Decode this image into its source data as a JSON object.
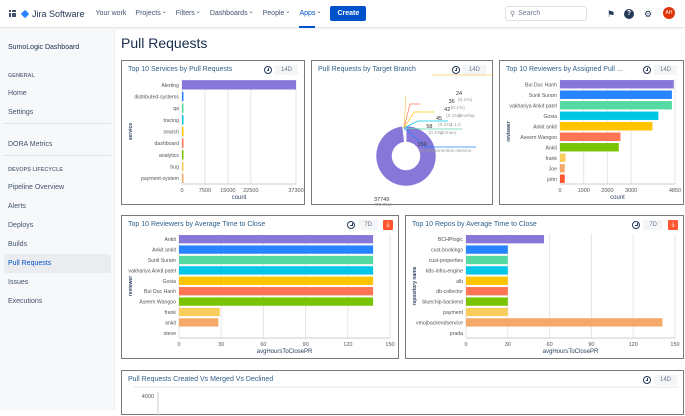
{
  "topbar": {
    "product": "Jira Software",
    "nav": [
      "Your work",
      "Projects",
      "Filters",
      "Dashboards",
      "People",
      "Apps"
    ],
    "active": "Apps",
    "create": "Create",
    "search_placeholder": "Search",
    "avatar": "AH",
    "icons": [
      "app-switcher-icon",
      "notifications-icon",
      "help-icon",
      "settings-icon"
    ]
  },
  "sidebar": {
    "dashboard": "SumoLogic Dashboard",
    "general_heading": "GENERAL",
    "general": [
      "Home",
      "Settings"
    ],
    "dora": "DORA Metrics",
    "devops_heading": "DEVOPS LIFECYCLE",
    "devops": [
      "Pipeline Overview",
      "Alerts",
      "Deploys",
      "Builds",
      "Pull Requests",
      "Issues",
      "Executions"
    ],
    "selected": "Pull Requests"
  },
  "page": {
    "title": "Pull Requests"
  },
  "colors": [
    "#8777d9",
    "#2684ff",
    "#57d9a3",
    "#00c7e6",
    "#ffc400",
    "#ff7452",
    "#79c300",
    "#f9cd5b",
    "#f5a969",
    "#ff5630"
  ],
  "chart_data": [
    {
      "type": "bar",
      "orientation": "horizontal",
      "title": "Top 10 Services by Pull Requests",
      "range": "14D",
      "ylabel": "service",
      "xlabel": "count",
      "xlim": [
        0,
        37300
      ],
      "xticks": [
        0,
        7500,
        15000,
        22500,
        37300
      ],
      "categories": [
        "Alerting",
        "distributed-systems",
        "qa",
        "tracing",
        "search",
        "dashboard",
        "analytics",
        "bug",
        "payment-system"
      ],
      "values": [
        37300,
        150,
        58,
        45,
        42,
        36,
        24,
        20,
        15
      ],
      "lead_bar": true
    },
    {
      "type": "pie",
      "style": "donut",
      "title": "Pull Requests by Target Branch",
      "range": "14D",
      "slices": [
        {
          "label": "master",
          "value": 37749,
          "pct": "99.0%"
        },
        {
          "label": "connection-service",
          "value": 150,
          "pct": "0.4%"
        },
        {
          "label": "primary",
          "value": 58,
          "pct": "0.1%"
        },
        {
          "label": "1.1.0",
          "value": 45,
          "pct": "0.1%"
        },
        {
          "label": "develop",
          "value": 42,
          "pct": "0.1%"
        },
        {
          "label": "",
          "value": 36,
          "pct": "0.1%"
        },
        {
          "label": "",
          "value": 24,
          "pct": "0.1%"
        }
      ]
    },
    {
      "type": "bar",
      "orientation": "horizontal",
      "title": "Top 10 Reviewers by Assigned Pull ...",
      "range": "14D",
      "ylabel": "reviewer",
      "xlabel": "count",
      "xlim": [
        0,
        4850
      ],
      "xticks": [
        0,
        1000,
        2000,
        3000,
        4850
      ],
      "categories": [
        "Bui Duc Hanh",
        "Sunil Suram",
        "vakhariya Ankit patel",
        "Gosia",
        "Ankit ankit",
        "Aseem Wangoo",
        "Ankit",
        "frank",
        "Joe",
        "john"
      ],
      "values": [
        4800,
        4720,
        4720,
        4150,
        3900,
        2550,
        2480,
        230,
        200,
        200
      ]
    },
    {
      "type": "bar",
      "orientation": "horizontal",
      "title": "Top 10 Reviewers by Average Time to Close",
      "range": "7D",
      "download": true,
      "ylabel": "reviewer",
      "xlabel": "avgHoursToClosePR",
      "xlim": [
        0,
        150
      ],
      "xticks": [
        0,
        30,
        60,
        90,
        120,
        150
      ],
      "categories": [
        "Ankit",
        "Ankit ankit",
        "Sunil Suram",
        "vakhariya Ankit patel",
        "Gosia",
        "Bui Duc Hanh",
        "Aseem Wangoo",
        "frank",
        "ankit",
        "steve"
      ],
      "values": [
        138,
        138,
        138,
        138,
        138,
        138,
        138,
        29,
        28,
        0
      ]
    },
    {
      "type": "bar",
      "orientation": "horizontal",
      "title": "Top 10 Repos by Average Time to Close",
      "range": "7D",
      "download": true,
      "ylabel": "repository name",
      "xlabel": "avgHoursToClosePR",
      "xlim": [
        0,
        150
      ],
      "xticks": [
        0,
        30,
        60,
        90,
        120,
        150
      ],
      "categories": [
        "BCHPlogic",
        "cust-bookings",
        "cust-properties",
        "k8s-infra-engine",
        "alb",
        "db-collector",
        "bluechip-backend",
        "payment",
        "vmojbackendservice",
        "prada"
      ],
      "values": [
        56,
        30,
        30,
        30,
        30,
        30,
        30,
        30,
        141,
        0
      ]
    },
    {
      "type": "line",
      "title": "Pull Requests Created Vs Merged Vs Declined",
      "range": "14D",
      "yticks": [
        4000
      ]
    }
  ]
}
